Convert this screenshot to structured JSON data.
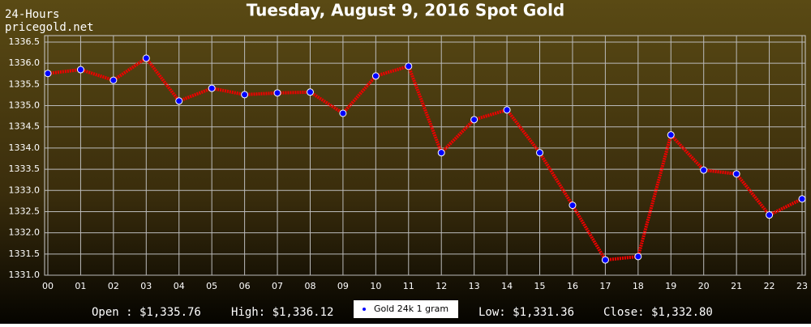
{
  "chart_data": {
    "type": "line",
    "title": "Tuesday, August 9, 2016 Spot Gold",
    "annotations": [
      "24-Hours",
      "pricegold.net"
    ],
    "stats": [
      "Open : $1,335.76",
      "High: $1,336.12",
      "Low: $1,331.36",
      "Close: $1,332.80"
    ],
    "categories": [
      "00",
      "01",
      "02",
      "03",
      "04",
      "05",
      "06",
      "07",
      "08",
      "09",
      "10",
      "11",
      "12",
      "13",
      "14",
      "15",
      "16",
      "17",
      "18",
      "19",
      "20",
      "21",
      "22",
      "23"
    ],
    "series": [
      {
        "name": "Gold 24k 1 gram",
        "color": "#ee0000",
        "marker_color": "#0000ff",
        "values": [
          1335.76,
          1335.85,
          1335.6,
          1336.12,
          1335.11,
          1335.41,
          1335.26,
          1335.3,
          1335.32,
          1334.82,
          1335.7,
          1335.93,
          1333.89,
          1334.67,
          1334.9,
          1333.89,
          1332.65,
          1331.36,
          1331.44,
          1334.31,
          1333.48,
          1333.39,
          1332.42,
          1332.8
        ]
      }
    ],
    "ylim": [
      1331.0,
      1336.5
    ],
    "yticks": [
      {
        "value": 1331.0,
        "label": "1331.0"
      },
      1331.5,
      {
        "value": 1332.0,
        "label": "1332.0"
      },
      1332.5,
      {
        "value": 1333.0,
        "label": "1333.0"
      },
      1333.5,
      {
        "value": 1334.0,
        "label": "1334.0"
      },
      1334.5,
      {
        "value": 1335.0,
        "label": "1335.0"
      },
      1335.5,
      {
        "value": 1336.0,
        "label": "1336.0"
      },
      1336.5
    ],
    "grid": true
  }
}
